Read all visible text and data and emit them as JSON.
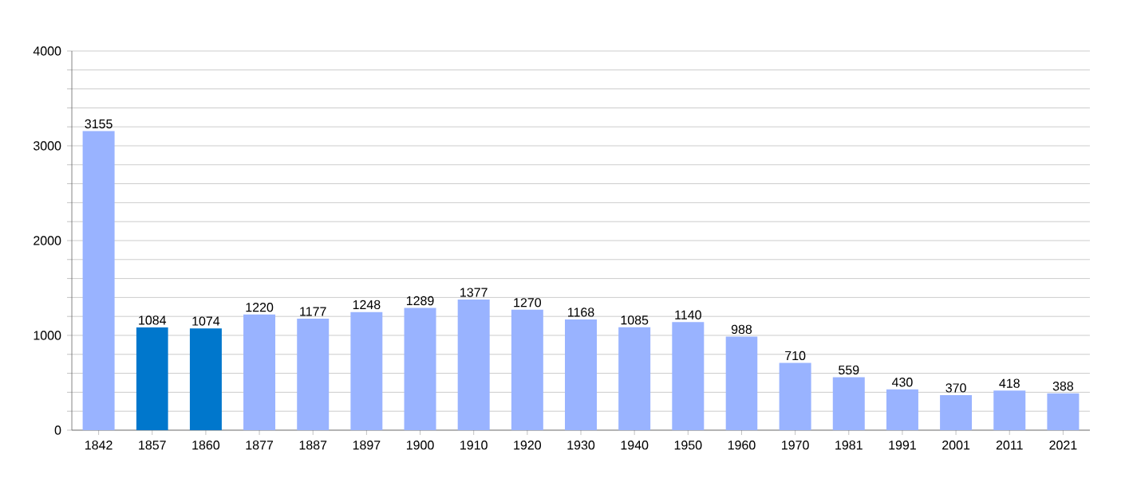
{
  "chart_data": {
    "type": "bar",
    "categories": [
      "1842",
      "1857",
      "1860",
      "1877",
      "1887",
      "1897",
      "1900",
      "1910",
      "1920",
      "1930",
      "1940",
      "1950",
      "1960",
      "1970",
      "1981",
      "1991",
      "2001",
      "2011",
      "2021"
    ],
    "values": [
      3155,
      1084,
      1074,
      1220,
      1177,
      1248,
      1289,
      1377,
      1270,
      1168,
      1085,
      1140,
      988,
      710,
      559,
      430,
      370,
      418,
      388
    ],
    "colors": [
      "#99b3ff",
      "#0077cc",
      "#0077cc",
      "#99b3ff",
      "#99b3ff",
      "#99b3ff",
      "#99b3ff",
      "#99b3ff",
      "#99b3ff",
      "#99b3ff",
      "#99b3ff",
      "#99b3ff",
      "#99b3ff",
      "#99b3ff",
      "#99b3ff",
      "#99b3ff",
      "#99b3ff",
      "#99b3ff",
      "#99b3ff"
    ],
    "ylim": [
      0,
      4000
    ],
    "yticks": [
      0,
      {
        "value": 200,
        "label": null
      },
      {
        "value": 400,
        "label": null
      },
      {
        "value": 600,
        "label": null
      },
      {
        "value": 800,
        "label": null
      },
      1000,
      {
        "value": 1200,
        "label": null
      },
      {
        "value": 1400,
        "label": null
      },
      {
        "value": 1600,
        "label": null
      },
      {
        "value": 1800,
        "label": null
      },
      2000,
      {
        "value": 2200,
        "label": null
      },
      {
        "value": 2400,
        "label": null
      },
      {
        "value": 2600,
        "label": null
      },
      {
        "value": 2800,
        "label": null
      },
      3000,
      {
        "value": 3200,
        "label": null
      },
      {
        "value": 3400,
        "label": null
      },
      {
        "value": 3600,
        "label": null
      },
      {
        "value": 3800,
        "label": null
      },
      4000
    ],
    "grid": "y",
    "data_labels": true
  }
}
